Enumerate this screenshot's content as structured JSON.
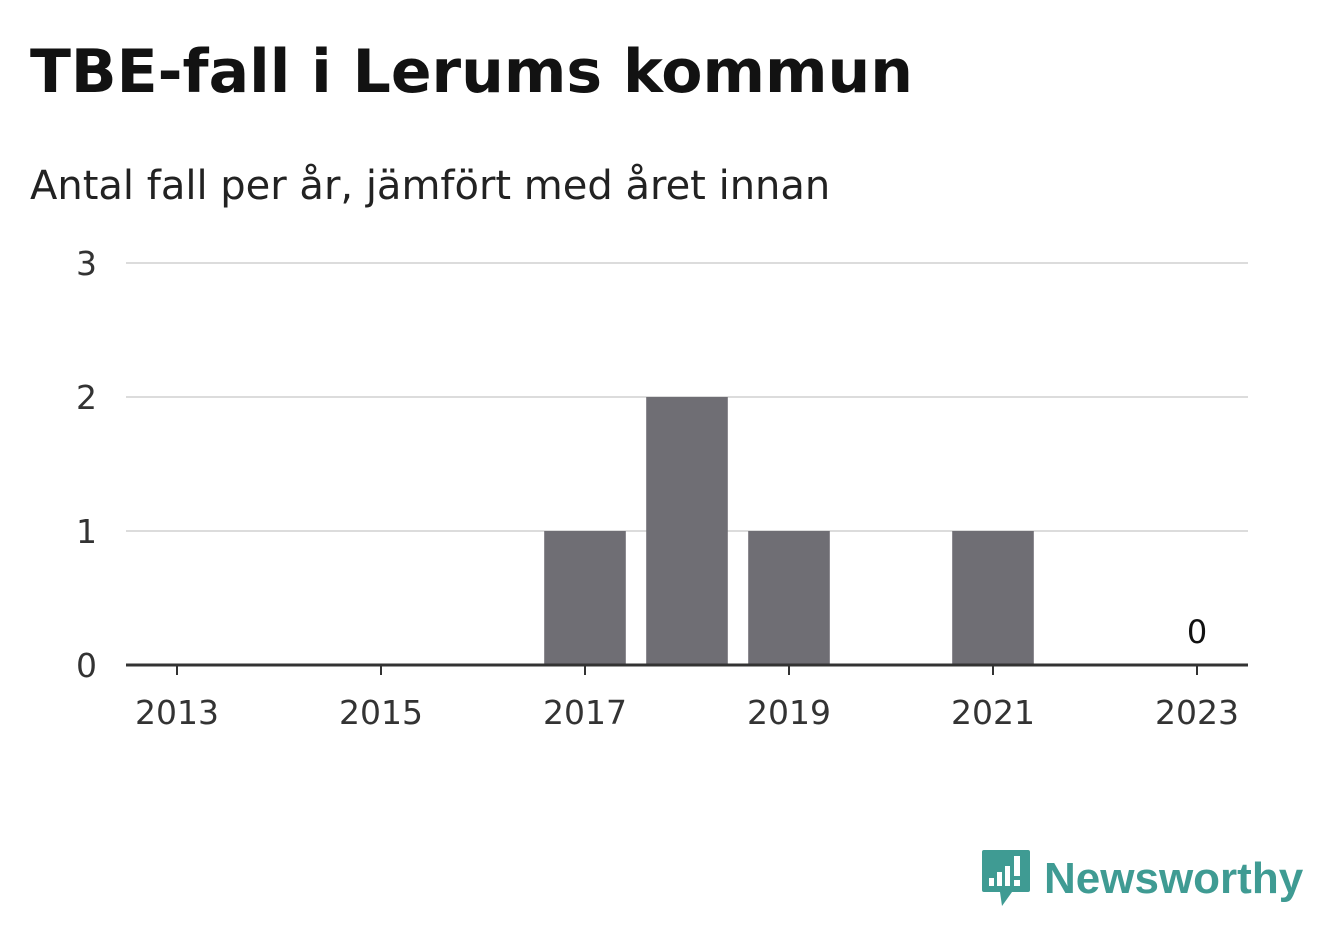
{
  "chart_data": {
    "type": "bar",
    "title": "TBE-fall i Lerums kommun",
    "subtitle": "Antal fall per år, jämfört med året innan",
    "x": [
      2013,
      2014,
      2015,
      2016,
      2017,
      2018,
      2019,
      2020,
      2021,
      2022,
      2023
    ],
    "values": [
      0,
      0,
      0,
      0,
      1,
      2,
      1,
      0,
      1,
      0,
      0
    ],
    "x_tick_labels": [
      "2013",
      "2015",
      "2017",
      "2019",
      "2021",
      "2023"
    ],
    "y_tick_labels": [
      "0",
      "1",
      "2",
      "3"
    ],
    "ylim": [
      0,
      3
    ],
    "grid": true,
    "bar_color": "#6f6e74",
    "annotation": {
      "x": 2023,
      "text": "0"
    }
  },
  "branding": {
    "logo_text": "Newsworthy",
    "logo_icon": "newsworthy-logo-icon",
    "color": "#3f9b93"
  }
}
